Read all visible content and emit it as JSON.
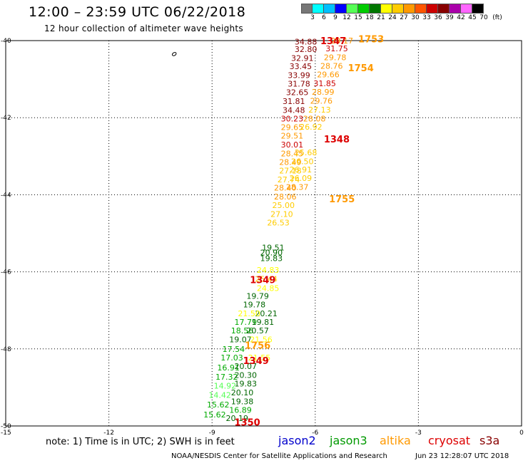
{
  "title": "12:00 – 23:59 UTC 06/22/2018",
  "subtitle": "12 hour collection of altimeter wave heights",
  "colorbar": {
    "labels": [
      "3",
      "6",
      "9",
      "12",
      "15",
      "18",
      "21",
      "24",
      "27",
      "30",
      "33",
      "36",
      "39",
      "42",
      "45",
      "70",
      "(ft)"
    ],
    "colors": [
      "#777777",
      "#00ffff",
      "#00bfff",
      "#0000ff",
      "#55ff55",
      "#00cc00",
      "#007700",
      "#ffff00",
      "#ffcc00",
      "#ff9900",
      "#ff5500",
      "#cc0000",
      "#880000",
      "#aa00aa",
      "#ff66ff",
      "#000000"
    ]
  },
  "axes": {
    "x_ticks": [
      "-15",
      "-12",
      "-9",
      "-6",
      "-3",
      "0"
    ],
    "y_ticks": [
      "-40",
      "-42",
      "-44",
      "-46",
      "-48",
      "-50"
    ]
  },
  "note": "note: 1) Time is in UTC; 2) SWH is in feet",
  "legend": [
    {
      "name": "jason2",
      "color": "#0000cc"
    },
    {
      "name": "jason3",
      "color": "#009900"
    },
    {
      "name": "altika",
      "color": "#ff9900"
    },
    {
      "name": "cryosat",
      "color": "#dd0000"
    },
    {
      "name": "s3a",
      "color": "#880000"
    }
  ],
  "credit": "NOAA/NESDIS Center for Satellite Applications and Research",
  "timestamp": "Jun 23 12:28:07 UTC 2018",
  "map": {
    "time_labels": [
      {
        "text": "1347",
        "lon": -5.85,
        "lat": -40.0,
        "color": "#dd0000"
      },
      {
        "text": "1753",
        "lon": -4.75,
        "lat": -39.95,
        "color": "#ff9900"
      },
      {
        "text": "1754",
        "lon": -5.05,
        "lat": -40.7,
        "color": "#ff9900"
      },
      {
        "text": "1348",
        "lon": -5.75,
        "lat": -42.55,
        "color": "#dd0000"
      },
      {
        "text": "1755",
        "lon": -5.6,
        "lat": -44.1,
        "color": "#ff9900"
      },
      {
        "text": "1349",
        "lon": -7.9,
        "lat": -46.2,
        "color": "#dd0000"
      },
      {
        "text": "1756",
        "lon": -8.05,
        "lat": -47.9,
        "color": "#ff9900"
      },
      {
        "text": "1349",
        "lon": -8.1,
        "lat": -48.3,
        "color": "#dd0000"
      },
      {
        "text": "1350",
        "lon": -8.35,
        "lat": -49.9,
        "color": "#dd0000"
      }
    ],
    "observations": [
      {
        "text": "34.88",
        "lon": -6.6,
        "lat": -40.03,
        "color": "#880000"
      },
      {
        "text": "32.80",
        "lon": -6.6,
        "lat": -40.22,
        "color": "#880000"
      },
      {
        "text": "32.91",
        "lon": -6.7,
        "lat": -40.45,
        "color": "#880000"
      },
      {
        "text": "33.45",
        "lon": -6.75,
        "lat": -40.67,
        "color": "#880000"
      },
      {
        "text": "33.99",
        "lon": -6.8,
        "lat": -40.9,
        "color": "#880000"
      },
      {
        "text": "31.78",
        "lon": -6.8,
        "lat": -41.12,
        "color": "#880000"
      },
      {
        "text": "32.65",
        "lon": -6.85,
        "lat": -41.34,
        "color": "#880000"
      },
      {
        "text": "31.81",
        "lon": -6.95,
        "lat": -41.57,
        "color": "#880000"
      },
      {
        "text": "34.48",
        "lon": -6.95,
        "lat": -41.8,
        "color": "#880000"
      },
      {
        "text": "30.23",
        "lon": -7.0,
        "lat": -42.02,
        "color": "#cc0000"
      },
      {
        "text": "29.65",
        "lon": -7.0,
        "lat": -42.25,
        "color": "#ff9900"
      },
      {
        "text": "29.51",
        "lon": -7.0,
        "lat": -42.47,
        "color": "#ff9900"
      },
      {
        "text": "30.01",
        "lon": -7.0,
        "lat": -42.7,
        "color": "#cc0000"
      },
      {
        "text": "28.45",
        "lon": -7.0,
        "lat": -42.93,
        "color": "#ff9900"
      },
      {
        "text": "28.49",
        "lon": -7.05,
        "lat": -43.15,
        "color": "#ff9900"
      },
      {
        "text": "27.18",
        "lon": -7.05,
        "lat": -43.37,
        "color": "#ffcc00"
      },
      {
        "text": "27.74",
        "lon": -7.1,
        "lat": -43.6,
        "color": "#ffcc00"
      },
      {
        "text": "28.40",
        "lon": -7.2,
        "lat": -43.82,
        "color": "#ff9900"
      },
      {
        "text": "28.06",
        "lon": -7.2,
        "lat": -44.05,
        "color": "#ff9900"
      },
      {
        "text": "25.00",
        "lon": -7.25,
        "lat": -44.27,
        "color": "#ffcc00"
      },
      {
        "text": "27.10",
        "lon": -7.3,
        "lat": -44.5,
        "color": "#ffcc00"
      },
      {
        "text": "26.53",
        "lon": -7.4,
        "lat": -44.72,
        "color": "#ffcc00"
      },
      {
        "text": "19.51",
        "lon": -7.55,
        "lat": -45.37,
        "color": "#006600"
      },
      {
        "text": "20.90",
        "lon": -7.6,
        "lat": -45.5,
        "color": "#006600"
      },
      {
        "text": "19.83",
        "lon": -7.6,
        "lat": -45.65,
        "color": "#006600"
      },
      {
        "text": "24.83",
        "lon": -7.7,
        "lat": -45.95,
        "color": "#ffff00"
      },
      {
        "text": "25.44",
        "lon": -7.75,
        "lat": -46.18,
        "color": "#ffcc00"
      },
      {
        "text": "24.85",
        "lon": -7.7,
        "lat": -46.42,
        "color": "#ffff00"
      },
      {
        "text": "19.79",
        "lon": -8.0,
        "lat": -46.63,
        "color": "#006600"
      },
      {
        "text": "19.78",
        "lon": -8.1,
        "lat": -46.85,
        "color": "#006600"
      },
      {
        "text": "20.21",
        "lon": -7.75,
        "lat": -47.08,
        "color": "#006600"
      },
      {
        "text": "21.50",
        "lon": -8.25,
        "lat": -47.08,
        "color": "#ffff00"
      },
      {
        "text": "17.79",
        "lon": -8.35,
        "lat": -47.3,
        "color": "#00aa00"
      },
      {
        "text": "19.81",
        "lon": -7.85,
        "lat": -47.3,
        "color": "#006600"
      },
      {
        "text": "18.56",
        "lon": -8.45,
        "lat": -47.52,
        "color": "#00aa00"
      },
      {
        "text": "20.57",
        "lon": -8.0,
        "lat": -47.52,
        "color": "#006600"
      },
      {
        "text": "19.07",
        "lon": -8.5,
        "lat": -47.75,
        "color": "#006600"
      },
      {
        "text": "21.56",
        "lon": -7.9,
        "lat": -47.75,
        "color": "#ffff00"
      },
      {
        "text": "17.54",
        "lon": -8.7,
        "lat": -48.0,
        "color": "#00aa00"
      },
      {
        "text": "17.03",
        "lon": -8.75,
        "lat": -48.23,
        "color": "#00aa00"
      },
      {
        "text": "21.55",
        "lon": -7.95,
        "lat": -48.23,
        "color": "#ffff00"
      },
      {
        "text": "16.91",
        "lon": -8.85,
        "lat": -48.48,
        "color": "#00aa00"
      },
      {
        "text": "20.07",
        "lon": -8.35,
        "lat": -48.45,
        "color": "#006600"
      },
      {
        "text": "17.32",
        "lon": -8.9,
        "lat": -48.72,
        "color": "#00aa00"
      },
      {
        "text": "20.30",
        "lon": -8.35,
        "lat": -48.68,
        "color": "#006600"
      },
      {
        "text": "14.92",
        "lon": -8.95,
        "lat": -48.96,
        "color": "#55ff55"
      },
      {
        "text": "19.83",
        "lon": -8.35,
        "lat": -48.9,
        "color": "#006600"
      },
      {
        "text": "14.42",
        "lon": -9.1,
        "lat": -49.2,
        "color": "#55ff55"
      },
      {
        "text": "20.10",
        "lon": -8.45,
        "lat": -49.13,
        "color": "#006600"
      },
      {
        "text": "15.62",
        "lon": -9.15,
        "lat": -49.45,
        "color": "#00aa00"
      },
      {
        "text": "19.38",
        "lon": -8.45,
        "lat": -49.36,
        "color": "#006600"
      },
      {
        "text": "16.89",
        "lon": -8.5,
        "lat": -49.58,
        "color": "#00aa00"
      },
      {
        "text": "15.62",
        "lon": -9.25,
        "lat": -49.7,
        "color": "#00aa00"
      },
      {
        "text": "20.19",
        "lon": -8.6,
        "lat": -49.8,
        "color": "#006600"
      },
      {
        "text": "29.17",
        "lon": -5.55,
        "lat": -40.0,
        "color": "#ff9900"
      },
      {
        "text": "31.75",
        "lon": -5.7,
        "lat": -40.2,
        "color": "#cc0000"
      },
      {
        "text": "29.78",
        "lon": -5.75,
        "lat": -40.43,
        "color": "#ff9900"
      },
      {
        "text": "28.76",
        "lon": -5.85,
        "lat": -40.66,
        "color": "#ff9900"
      },
      {
        "text": "29.66",
        "lon": -5.95,
        "lat": -40.88,
        "color": "#ff9900"
      },
      {
        "text": "31.85",
        "lon": -6.05,
        "lat": -41.11,
        "color": "#cc0000"
      },
      {
        "text": "28.99",
        "lon": -6.1,
        "lat": -41.33,
        "color": "#ff9900"
      },
      {
        "text": "29.76",
        "lon": -6.15,
        "lat": -41.56,
        "color": "#ff9900"
      },
      {
        "text": "27.13",
        "lon": -6.2,
        "lat": -41.79,
        "color": "#ffcc00"
      },
      {
        "text": "28.08",
        "lon": -6.35,
        "lat": -42.02,
        "color": "#ff9900"
      },
      {
        "text": "26.92",
        "lon": -6.45,
        "lat": -42.24,
        "color": "#ffcc00"
      },
      {
        "text": "25.68",
        "lon": -6.6,
        "lat": -42.9,
        "color": "#ffcc00"
      },
      {
        "text": "26.50",
        "lon": -6.7,
        "lat": -43.13,
        "color": "#ffcc00"
      },
      {
        "text": "26.91",
        "lon": -6.75,
        "lat": -43.35,
        "color": "#ffcc00"
      },
      {
        "text": "26.09",
        "lon": -6.75,
        "lat": -43.57,
        "color": "#ffcc00"
      },
      {
        "text": "28.37",
        "lon": -6.85,
        "lat": -43.8,
        "color": "#ff9900"
      }
    ],
    "marker": {
      "lon": -10.1,
      "lat": -40.35
    }
  }
}
